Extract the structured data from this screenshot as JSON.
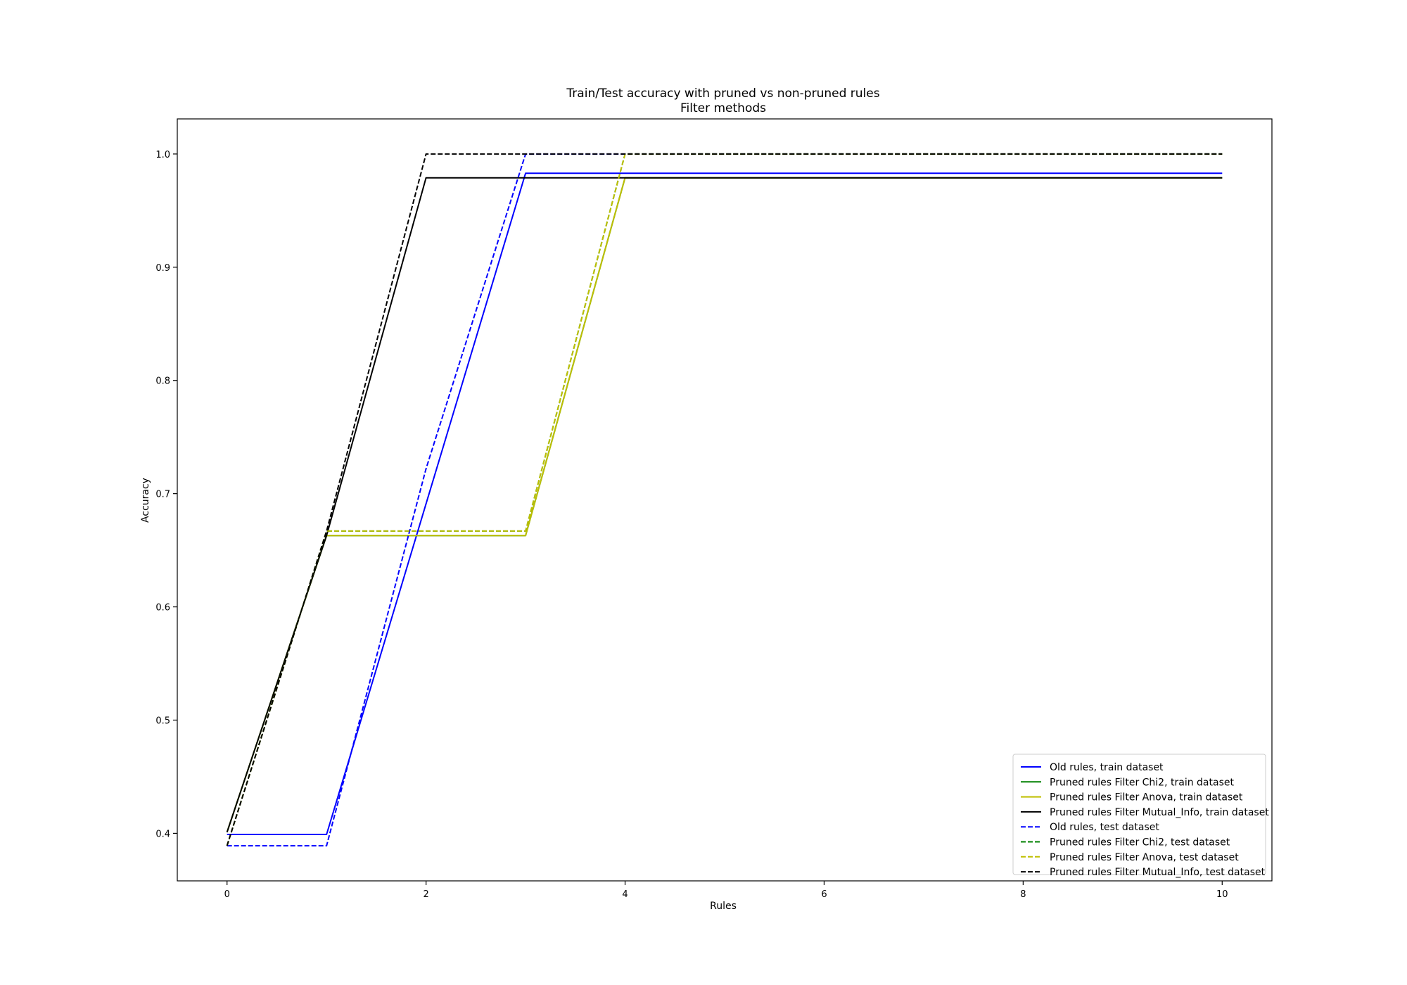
{
  "chart_data": {
    "type": "line",
    "title": "Train/Test accuracy with pruned vs non-pruned rules",
    "subtitle": "Filter methods",
    "xlabel": "Rules",
    "ylabel": "Accuracy",
    "xlim": [
      -0.5,
      10.5
    ],
    "ylim": [
      0.358,
      1.031
    ],
    "xticks": [
      0,
      2,
      4,
      6,
      8,
      10
    ],
    "yticks": [
      0.4,
      0.5,
      0.6,
      0.7,
      0.8,
      0.9,
      1.0
    ],
    "xtick_labels": [
      "0",
      "2",
      "4",
      "6",
      "8",
      "10"
    ],
    "ytick_labels": [
      "0.4",
      "0.5",
      "0.6",
      "0.7",
      "0.8",
      "0.9",
      "1.0"
    ],
    "grid": false,
    "legend_position": "lower-right",
    "series": [
      {
        "name": "Old rules, train dataset",
        "color": "#0000ff",
        "dash": "solid",
        "x": [
          0,
          1,
          2,
          3,
          4,
          5,
          6,
          7,
          8,
          9,
          10
        ],
        "y": [
          0.399,
          0.399,
          0.691,
          0.983,
          0.983,
          0.983,
          0.983,
          0.983,
          0.983,
          0.983,
          0.983
        ]
      },
      {
        "name": "Pruned rules Filter Chi2, train dataset",
        "color": "#008000",
        "dash": "solid",
        "x": [
          0,
          1,
          2,
          3,
          4,
          5,
          6,
          7,
          8,
          9,
          10
        ],
        "y": [
          0.401,
          0.663,
          0.663,
          0.663,
          0.979,
          0.979,
          0.979,
          0.979,
          0.979,
          0.979,
          0.979
        ]
      },
      {
        "name": "Pruned rules Filter Anova, train dataset",
        "color": "#bfbf00",
        "dash": "solid",
        "x": [
          0,
          1,
          2,
          3,
          4,
          5,
          6,
          7,
          8,
          9,
          10
        ],
        "y": [
          0.401,
          0.663,
          0.663,
          0.663,
          0.979,
          0.979,
          0.979,
          0.979,
          0.979,
          0.979,
          0.979
        ]
      },
      {
        "name": "Pruned rules Filter Mutual_Info, train dataset",
        "color": "#000000",
        "dash": "solid",
        "x": [
          0,
          1,
          2,
          3,
          4,
          5,
          6,
          7,
          8,
          9,
          10
        ],
        "y": [
          0.401,
          0.663,
          0.979,
          0.979,
          0.979,
          0.979,
          0.979,
          0.979,
          0.979,
          0.979,
          0.979
        ]
      },
      {
        "name": "Old rules, test dataset",
        "color": "#0000ff",
        "dash": "dashed",
        "x": [
          0,
          1,
          2,
          3,
          4,
          5,
          6,
          7,
          8,
          9,
          10
        ],
        "y": [
          0.389,
          0.389,
          0.722,
          1.0,
          1.0,
          1.0,
          1.0,
          1.0,
          1.0,
          1.0,
          1.0
        ]
      },
      {
        "name": "Pruned rules Filter Chi2, test dataset",
        "color": "#008000",
        "dash": "dashed",
        "x": [
          0,
          1,
          2,
          3,
          4,
          5,
          6,
          7,
          8,
          9,
          10
        ],
        "y": [
          0.389,
          0.667,
          0.667,
          0.667,
          1.0,
          1.0,
          1.0,
          1.0,
          1.0,
          1.0,
          1.0
        ]
      },
      {
        "name": "Pruned rules Filter Anova, test dataset",
        "color": "#bfbf00",
        "dash": "dashed",
        "x": [
          0,
          1,
          2,
          3,
          4,
          5,
          6,
          7,
          8,
          9,
          10
        ],
        "y": [
          0.389,
          0.667,
          0.667,
          0.667,
          1.0,
          1.0,
          1.0,
          1.0,
          1.0,
          1.0,
          1.0
        ]
      },
      {
        "name": "Pruned rules Filter Mutual_Info, test dataset",
        "color": "#000000",
        "dash": "dashed",
        "x": [
          0,
          1,
          2,
          3,
          4,
          5,
          6,
          7,
          8,
          9,
          10
        ],
        "y": [
          0.389,
          0.667,
          1.0,
          1.0,
          1.0,
          1.0,
          1.0,
          1.0,
          1.0,
          1.0,
          1.0
        ]
      }
    ]
  }
}
